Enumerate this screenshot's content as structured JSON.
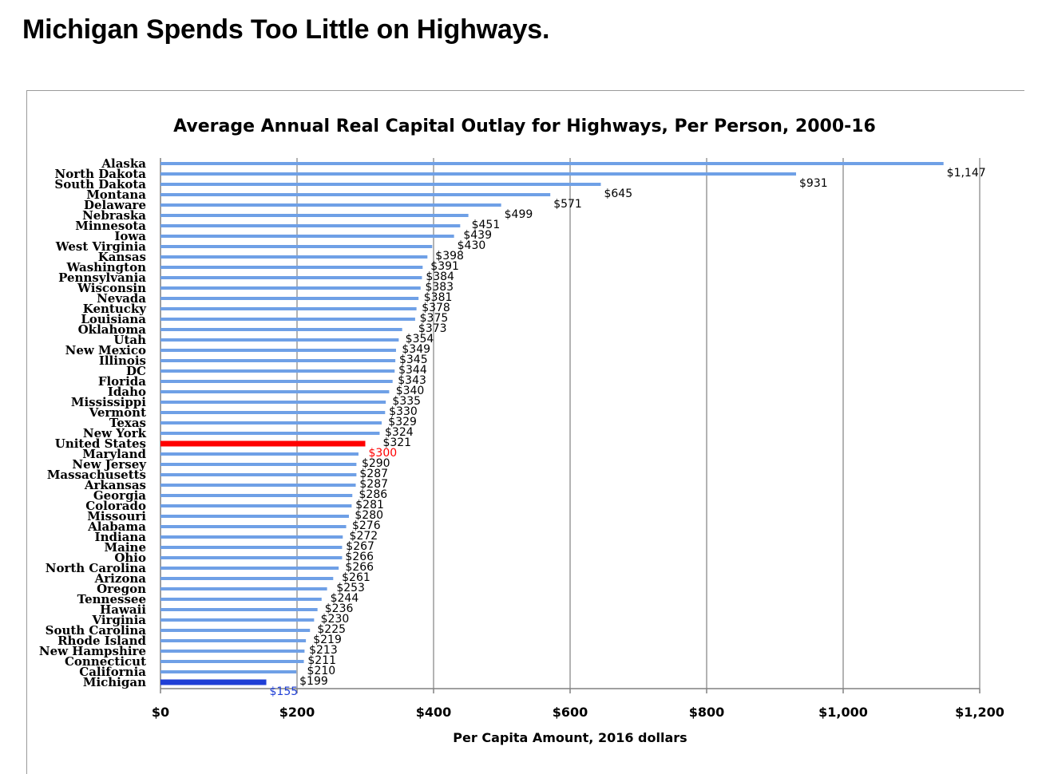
{
  "page": {
    "title": "Michigan Spends Too Little on Highways."
  },
  "colors": {
    "bar": "#6fa0e6",
    "highlight_us": "#ff0000",
    "highlight_mi": "#1f3fd6",
    "grid": "#9a9a9a",
    "text": "#000000"
  },
  "chart_data": {
    "type": "bar",
    "orientation": "horizontal",
    "title": "Average Annual Real Capital Outlay for Highways, Per Person, 2000-16",
    "xlabel": "Per Capita Amount, 2016 dollars",
    "ylabel": "",
    "xlim": [
      0,
      1200
    ],
    "xticks": [
      0,
      200,
      400,
      600,
      800,
      1000,
      1200
    ],
    "xtick_labels": [
      "$0",
      "$200",
      "$400",
      "$600",
      "$800",
      "$1,000",
      "$1,200"
    ],
    "grid": "vertical",
    "categories": [
      "Alaska",
      "North Dakota",
      "South Dakota",
      "Montana",
      "Delaware",
      "Nebraska",
      "Minnesota",
      "Iowa",
      "West Virginia",
      "Kansas",
      "Washington",
      "Pennsylvania",
      "Wisconsin",
      "Nevada",
      "Kentucky",
      "Louisiana",
      "Oklahoma",
      "Utah",
      "New Mexico",
      "Illinois",
      "DC",
      "Florida",
      "Idaho",
      "Mississippi",
      "Vermont",
      "Texas",
      "New York",
      "United States",
      "Maryland",
      "New Jersey",
      "Massachusetts",
      "Arkansas",
      "Georgia",
      "Colorado",
      "Missouri",
      "Alabama",
      "Indiana",
      "Maine",
      "Ohio",
      "North Carolina",
      "Arizona",
      "Oregon",
      "Tennessee",
      "Hawaii",
      "Virginia",
      "South Carolina",
      "Rhode Island",
      "New Hampshire",
      "Connecticut",
      "California",
      "Michigan"
    ],
    "values": [
      1147,
      931,
      645,
      571,
      499,
      451,
      439,
      430,
      398,
      391,
      384,
      383,
      381,
      378,
      375,
      373,
      354,
      349,
      345,
      344,
      343,
      340,
      335,
      330,
      329,
      324,
      321,
      300,
      290,
      287,
      287,
      286,
      281,
      280,
      276,
      272,
      267,
      266,
      266,
      261,
      253,
      244,
      236,
      230,
      225,
      219,
      213,
      211,
      210,
      199,
      155
    ],
    "value_labels": [
      "$1,147",
      "$931",
      "$645",
      "$571",
      "$499",
      "$451",
      "$439",
      "$430",
      "$398",
      "$391",
      "$384",
      "$383",
      "$381",
      "$378",
      "$375",
      "$373",
      "$354",
      "$349",
      "$345",
      "$344",
      "$343",
      "$340",
      "$335",
      "$330",
      "$329",
      "$324",
      "$321",
      "$300",
      "$290",
      "$287",
      "$287",
      "$286",
      "$281",
      "$280",
      "$276",
      "$272",
      "$267",
      "$266",
      "$266",
      "$261",
      "$253",
      "$244",
      "$236",
      "$230",
      "$225",
      "$219",
      "$213",
      "$211",
      "$210",
      "$199",
      "$155"
    ],
    "highlights": {
      "United States": "#ff0000",
      "Michigan": "#1f3fd6"
    }
  }
}
